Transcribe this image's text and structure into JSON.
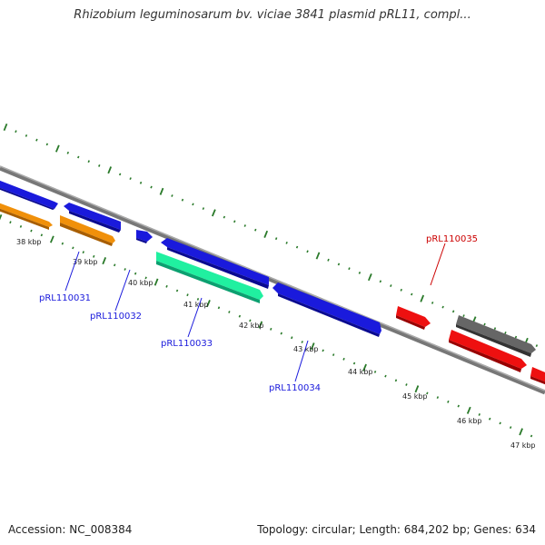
{
  "title": "Rhizobium leguminosarum bv. viciae 3841 plasmid pRL11, compl...",
  "footer": {
    "accession": "Accession: NC_008384",
    "topology": "Topology: circular; Length: 684,202 bp; Genes: 634"
  },
  "kbp_labels": [
    "38 kbp",
    "39 kbp",
    "40 kbp",
    "41 kbp",
    "42 kbp",
    "43 kbp",
    "44 kbp",
    "45 kbp",
    "46 kbp",
    "47 kbp"
  ],
  "genes": [
    {
      "id": "g-blue-a",
      "label": "",
      "color": "#1a1adc"
    },
    {
      "id": "g-orange-a",
      "label": "",
      "color": "#f0900a"
    },
    {
      "id": "g-pRL110031",
      "label": "pRL110031",
      "color": "#1a1adc"
    },
    {
      "id": "g-pRL110032",
      "label": "pRL110032",
      "color": "#f0900a"
    },
    {
      "id": "g-blue-small",
      "label": "",
      "color": "#1a1adc"
    },
    {
      "id": "g-blue-mid",
      "label": "",
      "color": "#1a1adc"
    },
    {
      "id": "g-pRL110033",
      "label": "pRL110033",
      "color": "#20f0a0"
    },
    {
      "id": "g-pRL110034",
      "label": "pRL110034",
      "color": "#1a1adc"
    },
    {
      "id": "g-pRL110035",
      "label": "pRL110035",
      "color": "#ee1010"
    },
    {
      "id": "g-gray",
      "label": "",
      "color": "#666666"
    },
    {
      "id": "g-red-b",
      "label": "",
      "color": "#ee1010"
    },
    {
      "id": "g-red-c",
      "label": "",
      "color": "#ee1010"
    }
  ],
  "colors": {
    "tick": "#2a7a2a",
    "backbone": "#777777",
    "blue_label": "#1a1adc",
    "red_label": "#cc0000"
  }
}
